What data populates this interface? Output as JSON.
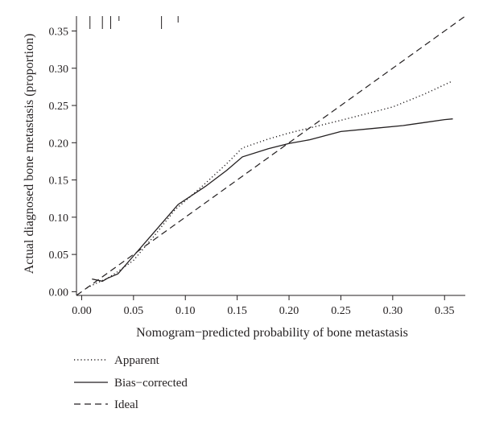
{
  "chart_data": {
    "type": "line",
    "title": "",
    "xlabel": "Nomogram−predicted probability of bone metastasis",
    "ylabel": "Actual diagnosed bone metastasis (proportion)",
    "xlim": [
      -0.005,
      0.37
    ],
    "ylim": [
      -0.005,
      0.37
    ],
    "x_ticks": [
      0.0,
      0.05,
      0.1,
      0.15,
      0.2,
      0.25,
      0.3,
      0.35
    ],
    "x_tick_labels": [
      "0.00",
      "0.05",
      "0.10",
      "0.15",
      "0.20",
      "0.25",
      "0.30",
      "0.35"
    ],
    "y_ticks": [
      0.0,
      0.05,
      0.1,
      0.15,
      0.2,
      0.25,
      0.3,
      0.35
    ],
    "y_tick_labels": [
      "0.00",
      "0.05",
      "0.10",
      "0.15",
      "0.20",
      "0.25",
      "0.30",
      "0.35"
    ],
    "grid": false,
    "legend_position": "bottom",
    "series": [
      {
        "name": "Apparent",
        "dash": "dotted",
        "x": [
          0.005,
          0.015,
          0.025,
          0.035,
          0.05,
          0.07,
          0.09,
          0.115,
          0.14,
          0.155,
          0.18,
          0.2,
          0.25,
          0.3,
          0.33,
          0.358
        ],
        "y": [
          0.005,
          0.012,
          0.018,
          0.027,
          0.042,
          0.075,
          0.11,
          0.14,
          0.172,
          0.193,
          0.205,
          0.213,
          0.23,
          0.248,
          0.265,
          0.283
        ]
      },
      {
        "name": "Bias−corrected",
        "dash": "solid",
        "x": [
          0.01,
          0.02,
          0.025,
          0.035,
          0.05,
          0.07,
          0.093,
          0.12,
          0.14,
          0.155,
          0.18,
          0.2,
          0.22,
          0.25,
          0.28,
          0.31,
          0.33,
          0.35,
          0.358
        ],
        "y": [
          0.017,
          0.014,
          0.018,
          0.024,
          0.048,
          0.08,
          0.117,
          0.142,
          0.163,
          0.181,
          0.192,
          0.199,
          0.204,
          0.215,
          0.219,
          0.223,
          0.227,
          0.231,
          0.232
        ]
      },
      {
        "name": "Ideal",
        "dash": "dashed",
        "x": [
          -0.005,
          0.37
        ],
        "y": [
          -0.005,
          0.37
        ]
      }
    ],
    "rug_top": [
      0.008,
      0.02,
      0.028,
      0.036,
      0.077,
      0.093
    ]
  }
}
